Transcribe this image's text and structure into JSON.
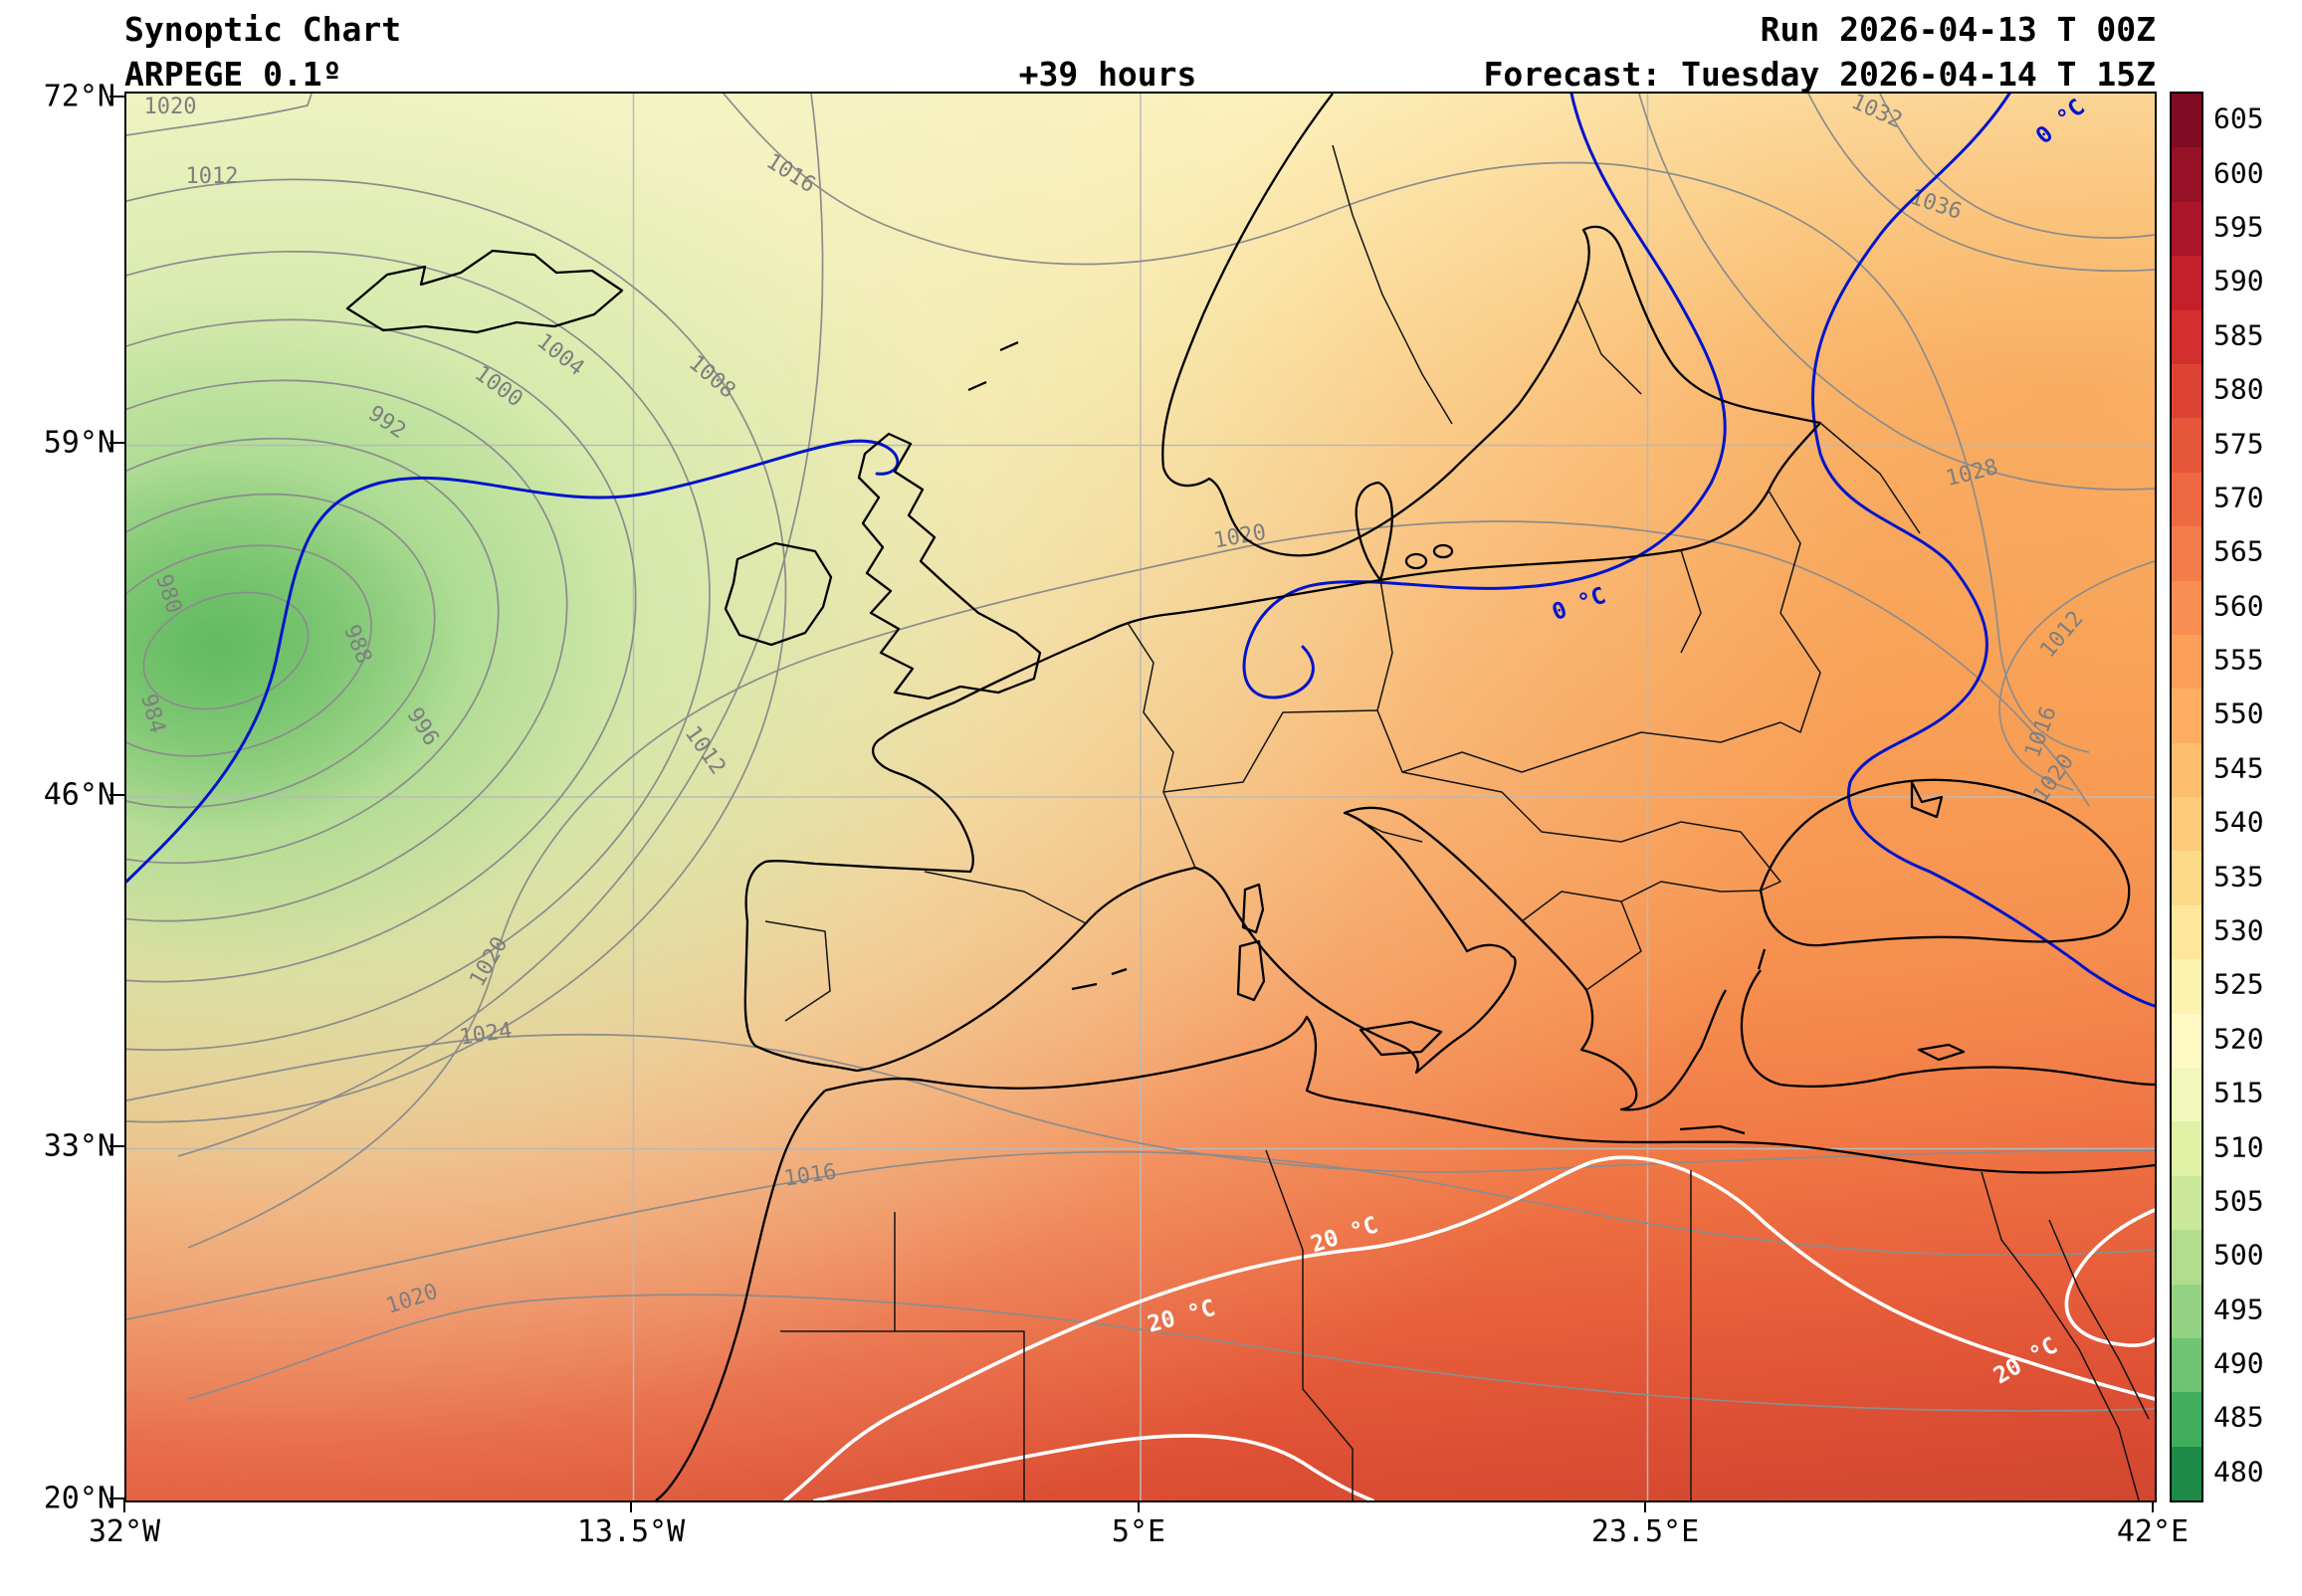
{
  "header": {
    "title": "Synoptic Chart",
    "model": "ARPEGE 0.1º",
    "lead_time": "+39 hours",
    "run": "Run 2026-04-13 T 00Z",
    "forecast": "Forecast: Tuesday 2026-04-14 T 15Z"
  },
  "axes": {
    "lat": [
      "72°N",
      "59°N",
      "46°N",
      "33°N",
      "20°N"
    ],
    "lon": [
      "32°W",
      "13.5°W",
      "5°E",
      "23.5°E",
      "42°E"
    ]
  },
  "colorbar": {
    "values": [
      605,
      600,
      595,
      590,
      585,
      580,
      575,
      570,
      565,
      560,
      555,
      550,
      545,
      540,
      535,
      530,
      525,
      520,
      515,
      510,
      505,
      500,
      495,
      490,
      485,
      480
    ],
    "colors": [
      "#7f0c23",
      "#961026",
      "#ad162a",
      "#c4202c",
      "#d32f2e",
      "#dd4334",
      "#e65639",
      "#ee6941",
      "#f47c4a",
      "#f88e53",
      "#fb9f5b",
      "#fdae63",
      "#fdbd6e",
      "#fdcb7b",
      "#fdd98a",
      "#fee79d",
      "#fef2b0",
      "#fffac4",
      "#f2f8bb",
      "#e0f1a6",
      "#cbe89a",
      "#b2dd8e",
      "#94d283",
      "#72c475",
      "#43ad5e",
      "#1d8a47"
    ]
  },
  "map": {
    "isobars": {
      "p980": "980",
      "p984": "984",
      "p988": "988",
      "p992": "992",
      "p996": "996",
      "p1000": "1000",
      "p1004": "1004",
      "p1008": "1008",
      "p1012": "1012",
      "p1016": "1016",
      "p1020": "1020",
      "p1024": "1024",
      "p1028": "1028",
      "p1032": "1032",
      "p1036": "1036"
    },
    "isotherms": {
      "zero": "0 °C",
      "twenty": "20 °C"
    },
    "colors": {
      "isobar": "#8c8c8c",
      "freezing_line": "#0014cc",
      "warm_line": "#ffffff",
      "coastline": "#000000",
      "grid": "#b9b9b9"
    }
  },
  "chart_data": {
    "type": "heatmap",
    "title": "Synoptic Chart",
    "model": "ARPEGE 0.1º",
    "lead_time_hours": 39,
    "run": "2026-04-13 T 00Z",
    "valid": "Tuesday 2026-04-14 T 15Z",
    "colorbar_scale": [
      605,
      600,
      595,
      590,
      585,
      580,
      575,
      570,
      565,
      560,
      555,
      550,
      545,
      540,
      535,
      530,
      525,
      520,
      515,
      510,
      505,
      500,
      495,
      490,
      485,
      480
    ],
    "isobar_values_hpa": [
      980,
      984,
      988,
      992,
      996,
      1000,
      1004,
      1008,
      1012,
      1016,
      1020,
      1024,
      1028,
      1032,
      1036
    ],
    "isotherm_values_c": [
      0,
      20
    ],
    "lat_ticks": [
      "72°N",
      "59°N",
      "46°N",
      "33°N",
      "20°N"
    ],
    "lon_ticks": [
      "32°W",
      "13.5°W",
      "5°E",
      "23.5°E",
      "42°E"
    ]
  }
}
